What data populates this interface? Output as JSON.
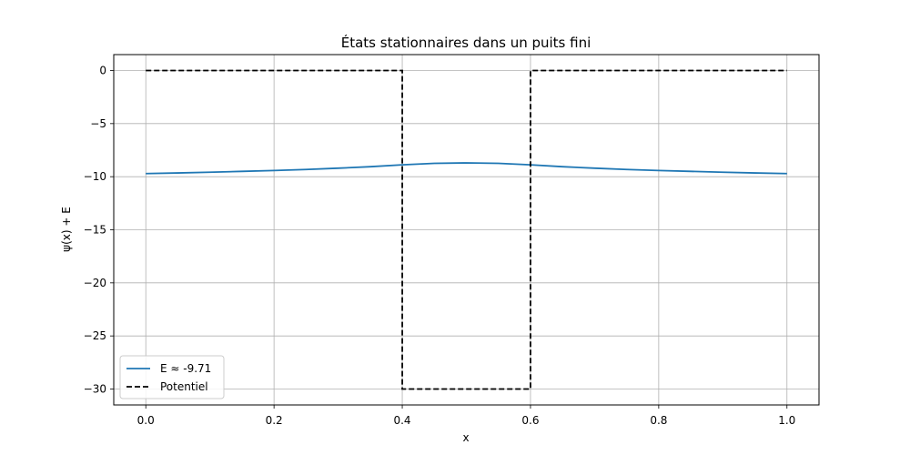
{
  "chart_data": {
    "type": "line",
    "title": "États stationnaires dans un puits fini",
    "xlabel": "x",
    "ylabel": "ψ(x) + E",
    "xlim": [
      -0.05,
      1.05
    ],
    "ylim": [
      -31.5,
      1.5
    ],
    "xticks": [
      0.0,
      0.2,
      0.4,
      0.6,
      0.8,
      1.0
    ],
    "xtick_labels": [
      "0.0",
      "0.2",
      "0.4",
      "0.6",
      "0.8",
      "1.0"
    ],
    "yticks": [
      0,
      -5,
      -10,
      -15,
      -20,
      -25,
      -30
    ],
    "ytick_labels": [
      "0",
      "−5",
      "−10",
      "−15",
      "−20",
      "−25",
      "−30"
    ],
    "grid": true,
    "legend_position": "lower-left",
    "series": [
      {
        "name": "E ≈ -9.71",
        "color": "#1f77b4",
        "style": "solid",
        "x": [
          0.0,
          0.05,
          0.1,
          0.15,
          0.2,
          0.25,
          0.3,
          0.35,
          0.4,
          0.45,
          0.5,
          0.55,
          0.6,
          0.65,
          0.7,
          0.75,
          0.8,
          0.85,
          0.9,
          0.95,
          1.0
        ],
        "y": [
          -9.71,
          -9.65,
          -9.58,
          -9.5,
          -9.42,
          -9.32,
          -9.2,
          -9.06,
          -8.88,
          -8.74,
          -8.7,
          -8.74,
          -8.88,
          -9.06,
          -9.2,
          -9.32,
          -9.42,
          -9.5,
          -9.58,
          -9.65,
          -9.71
        ]
      },
      {
        "name": "Potentiel",
        "color": "#000000",
        "style": "dashed",
        "x": [
          0.0,
          0.4,
          0.4,
          0.6,
          0.6,
          1.0
        ],
        "y": [
          0,
          0,
          -30,
          -30,
          0,
          0
        ]
      }
    ]
  }
}
